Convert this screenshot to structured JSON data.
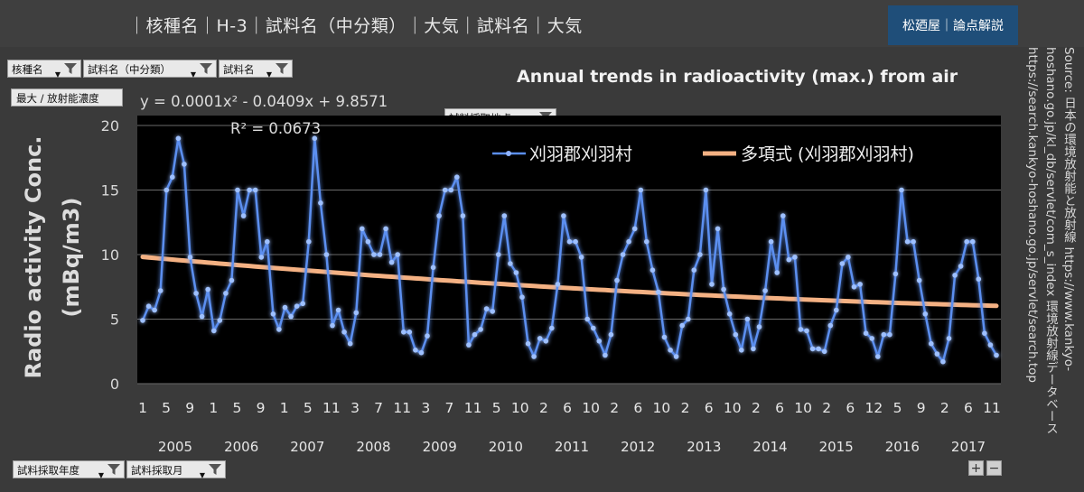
{
  "header": {
    "title": "｜核種名｜H-3｜試料名（中分類）｜大気｜試料名｜大気",
    "brand": "松廼屋｜論点解説"
  },
  "filters": {
    "nuclide": "核種名",
    "sample_category": "試料名（中分類）",
    "sample_name": "試料名",
    "value_field": "最大 / 放射能濃度",
    "sampling_site": "試料採取地点",
    "sampling_year": "試料採取年度",
    "sampling_month": "試料採取月"
  },
  "source": {
    "line1": "Source: 日本の環境放射能と放射線 https://www.kankyo-",
    "line2": "hoshano.go.jp/kl_db/servlet/com_s_index 環境放射線データベース",
    "line3": "https://search.kankyo-hoshano.go.jp/servlet/search.top"
  },
  "zoom": {
    "plus": "+",
    "minus": "−"
  },
  "colors": {
    "series": "#5b8ff0",
    "trend": "#f4b183",
    "background": "#000000"
  },
  "chart_data": {
    "type": "line",
    "title": "Annual trends in radioactivity (max.) from air",
    "ylabel": "Radio activity Conc. (mBq/m3)",
    "xlabel": "",
    "ylim": [
      0,
      20
    ],
    "yticks": [
      0,
      5,
      10,
      15,
      20
    ],
    "grid": true,
    "legend_position": "top-right",
    "month_tick_labels": [
      "1",
      "5",
      "9",
      "1",
      "5",
      "9",
      "1",
      "5",
      "11",
      "3",
      "7",
      "11",
      "3",
      "7",
      "11",
      "5",
      "10",
      "2",
      "6",
      "10",
      "2",
      "6",
      "10",
      "2",
      "6",
      "10",
      "2",
      "6",
      "10",
      "2",
      "6",
      "12",
      "5",
      "9",
      "2",
      "6",
      "11"
    ],
    "years": [
      "2005",
      "2006",
      "2007",
      "2008",
      "2009",
      "2010",
      "2011",
      "2012",
      "2013",
      "2014",
      "2015",
      "2016",
      "2017"
    ],
    "equation": "y = 0.0001x² - 0.0409x + 9.8571",
    "r_squared": "R² = 0.0673",
    "series": [
      {
        "name": "刈羽郡刈羽村",
        "values": [
          4.9,
          6,
          5.7,
          7.2,
          15,
          16,
          19,
          17,
          9.8,
          7,
          5.2,
          7.3,
          4.1,
          4.9,
          7,
          8,
          15,
          13,
          15,
          15,
          9.8,
          11,
          5.4,
          4.2,
          5.9,
          5.2,
          6,
          6.2,
          11,
          19,
          14,
          10,
          4.5,
          5.7,
          4,
          3.1,
          5.5,
          12,
          11,
          10,
          10,
          12,
          9.4,
          10,
          4,
          4,
          2.6,
          2.4,
          3.7,
          9,
          13,
          15,
          15,
          16,
          13,
          3,
          3.8,
          4.2,
          5.8,
          5.6,
          10,
          13,
          9.3,
          8.6,
          6.7,
          3.1,
          2.1,
          3.5,
          3.3,
          4.3,
          7.7,
          13,
          11,
          11,
          9.8,
          5,
          4.3,
          3.3,
          2.2,
          3.8,
          8,
          10,
          11,
          12,
          15,
          11,
          8.8,
          7.1,
          3.6,
          2.6,
          2.1,
          4.5,
          5,
          8.8,
          10,
          15,
          7.7,
          12,
          7.3,
          5.4,
          3.8,
          2.6,
          5,
          2.7,
          4.4,
          7.2,
          11,
          8.6,
          13,
          9.6,
          9.8,
          4.2,
          4.1,
          2.7,
          2.7,
          2.5,
          4.5,
          5.7,
          9.3,
          9.8,
          7.5,
          7.7,
          3.9,
          3.5,
          2.1,
          3.8,
          3.8,
          8.5,
          15,
          11,
          11,
          8,
          5.4,
          3.1,
          2.3,
          1.7,
          3.5,
          8.4,
          9.1,
          11,
          11,
          8.1,
          3.9,
          3,
          2.2
        ]
      },
      {
        "name": "多項式 (刈羽郡刈羽村)",
        "type": "polynomial-trend",
        "equation": "y = 0.0001x² - 0.0409x + 9.8571"
      }
    ]
  }
}
